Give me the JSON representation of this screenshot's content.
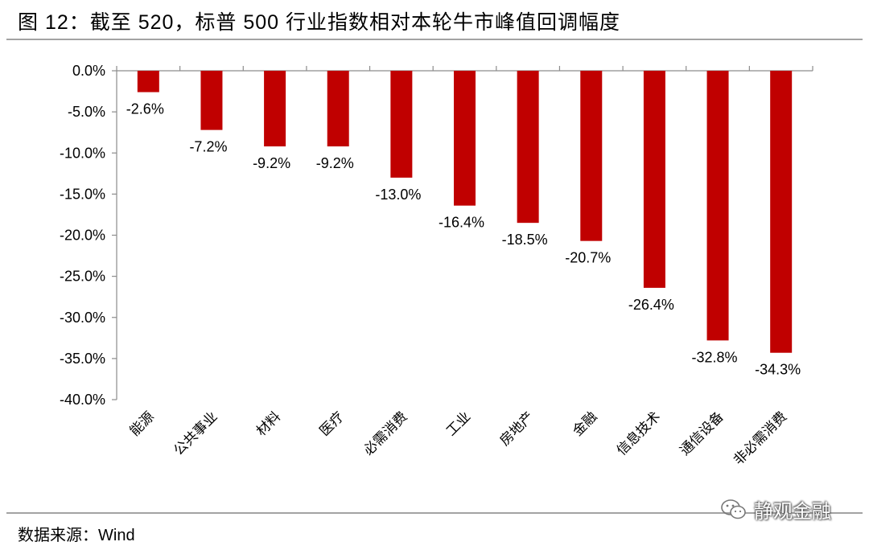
{
  "header": {
    "title": "图 12：截至 520，标普 500 行业指数相对本轮牛市峰值回调幅度"
  },
  "footer": {
    "source": "数据来源：Wind",
    "watermark": "静观金融",
    "watermark_icon": "wechat-icon"
  },
  "chart_data": {
    "type": "bar",
    "title": "图 12：截至 520，标普 500 行业指数相对本轮牛市峰值回调幅度",
    "xlabel": "",
    "ylabel": "",
    "ylim": [
      -40,
      0
    ],
    "yticks": [
      0,
      -5,
      -10,
      -15,
      -20,
      -25,
      -30,
      -35,
      -40
    ],
    "ytick_labels": [
      "0.0%",
      "-5.0%",
      "-10.0%",
      "-15.0%",
      "-20.0%",
      "-25.0%",
      "-30.0%",
      "-35.0%",
      "-40.0%"
    ],
    "categories": [
      "能源",
      "公共事业",
      "材料",
      "医疗",
      "必需消费",
      "工业",
      "房地产",
      "金融",
      "信息技术",
      "通信设备",
      "非必需消费"
    ],
    "values": [
      -2.6,
      -7.2,
      -9.2,
      -9.2,
      -13.0,
      -16.4,
      -18.5,
      -20.7,
      -26.4,
      -32.8,
      -34.3
    ],
    "data_labels": [
      "-2.6%",
      "-7.2%",
      "-9.2%",
      "-9.2%",
      "-13.0%",
      "-16.4%",
      "-18.5%",
      "-20.7%",
      "-26.4%",
      "-32.8%",
      "-34.3%"
    ],
    "bar_color": "#c00000",
    "grid": false,
    "legend": "none"
  }
}
